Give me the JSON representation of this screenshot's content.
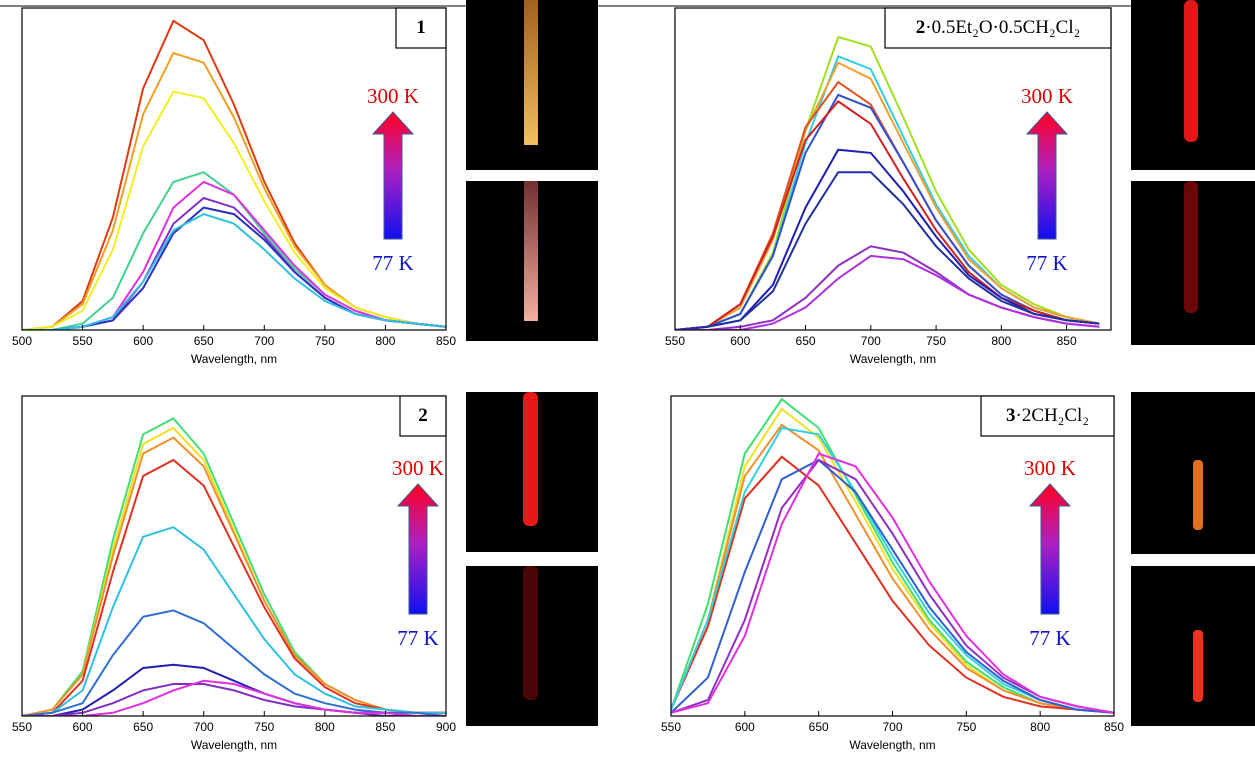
{
  "chart_data": [
    {
      "type": "line",
      "xlabel": "Wavelength, nm",
      "label": {
        "number": "1"
      },
      "hot": "300 K",
      "cold": "77 K",
      "xlim": [
        500,
        850
      ],
      "ylim": [
        0,
        1
      ],
      "xticks": [
        500,
        550,
        600,
        650,
        700,
        750,
        800,
        850
      ],
      "x": [
        500,
        525,
        550,
        575,
        600,
        625,
        650,
        675,
        700,
        725,
        750,
        775,
        800,
        825,
        850
      ],
      "series": [
        {
          "color": "#e03a10",
          "values": [
            0,
            0.01,
            0.09,
            0.35,
            0.75,
            0.96,
            0.9,
            0.7,
            0.46,
            0.27,
            0.14,
            0.07,
            0.04,
            0.02,
            0.01
          ]
        },
        {
          "color": "#f0a020",
          "values": [
            0,
            0.01,
            0.08,
            0.31,
            0.67,
            0.86,
            0.83,
            0.66,
            0.44,
            0.26,
            0.14,
            0.07,
            0.04,
            0.02,
            0.01
          ]
        },
        {
          "color": "#f0f020",
          "values": [
            0,
            0.01,
            0.06,
            0.25,
            0.57,
            0.74,
            0.72,
            0.58,
            0.4,
            0.24,
            0.13,
            0.07,
            0.04,
            0.02,
            0.01
          ]
        },
        {
          "color": "#40d090",
          "values": [
            0,
            0,
            0.02,
            0.1,
            0.3,
            0.46,
            0.49,
            0.42,
            0.3,
            0.19,
            0.11,
            0.06,
            0.03,
            0.02,
            0.01
          ]
        },
        {
          "color": "#e030e0",
          "values": [
            0,
            0,
            0.01,
            0.04,
            0.18,
            0.38,
            0.46,
            0.42,
            0.31,
            0.2,
            0.11,
            0.06,
            0.03,
            0.02,
            0.01
          ]
        },
        {
          "color": "#8030d0",
          "values": [
            0,
            0,
            0.01,
            0.03,
            0.15,
            0.33,
            0.41,
            0.38,
            0.29,
            0.18,
            0.1,
            0.05,
            0.03,
            0.02,
            0.01
          ]
        },
        {
          "color": "#3030c0",
          "values": [
            0,
            0,
            0.01,
            0.03,
            0.13,
            0.3,
            0.38,
            0.36,
            0.28,
            0.18,
            0.1,
            0.05,
            0.03,
            0.02,
            0.01
          ]
        },
        {
          "color": "#30c0e0",
          "values": [
            0,
            0,
            0.01,
            0.04,
            0.15,
            0.31,
            0.36,
            0.33,
            0.25,
            0.16,
            0.09,
            0.05,
            0.03,
            0.02,
            0.01
          ]
        }
      ]
    },
    {
      "type": "line",
      "xlabel": "Wavelength, nm",
      "label": {
        "number": "2",
        "formula": "·0.5Et₂O·0.5CH₂Cl₂"
      },
      "hot": "300 K",
      "cold": "77 K",
      "xlim": [
        550,
        884
      ],
      "ylim": [
        0,
        1
      ],
      "xticks": [
        550,
        600,
        650,
        700,
        750,
        800,
        850
      ],
      "x": [
        550,
        575,
        600,
        625,
        650,
        675,
        700,
        725,
        750,
        775,
        800,
        825,
        850,
        875
      ],
      "series": [
        {
          "color": "#a0e020",
          "values": [
            0,
            0.01,
            0.05,
            0.24,
            0.62,
            0.91,
            0.88,
            0.66,
            0.43,
            0.25,
            0.14,
            0.08,
            0.04,
            0.02
          ]
        },
        {
          "color": "#30d0e0",
          "values": [
            0,
            0.01,
            0.05,
            0.23,
            0.58,
            0.85,
            0.81,
            0.6,
            0.39,
            0.23,
            0.13,
            0.07,
            0.04,
            0.02
          ]
        },
        {
          "color": "#f0a030",
          "values": [
            0,
            0.01,
            0.07,
            0.28,
            0.62,
            0.83,
            0.78,
            0.58,
            0.38,
            0.22,
            0.13,
            0.07,
            0.04,
            0.02
          ]
        },
        {
          "color": "#e05020",
          "values": [
            0,
            0.01,
            0.08,
            0.3,
            0.63,
            0.77,
            0.7,
            0.52,
            0.34,
            0.2,
            0.11,
            0.06,
            0.03,
            0.02
          ]
        },
        {
          "color": "#3050d0",
          "values": [
            0,
            0.01,
            0.05,
            0.23,
            0.55,
            0.73,
            0.69,
            0.52,
            0.34,
            0.2,
            0.11,
            0.06,
            0.03,
            0.02
          ]
        },
        {
          "color": "#d02020",
          "values": [
            0,
            0.01,
            0.08,
            0.29,
            0.59,
            0.71,
            0.64,
            0.47,
            0.31,
            0.18,
            0.1,
            0.06,
            0.03,
            0.02
          ]
        },
        {
          "color": "#2020b0",
          "values": [
            0,
            0.01,
            0.03,
            0.14,
            0.38,
            0.56,
            0.55,
            0.43,
            0.29,
            0.17,
            0.1,
            0.05,
            0.03,
            0.02
          ]
        },
        {
          "color": "#2030a0",
          "values": [
            0,
            0.01,
            0.03,
            0.12,
            0.33,
            0.49,
            0.49,
            0.39,
            0.26,
            0.16,
            0.09,
            0.05,
            0.03,
            0.02
          ]
        },
        {
          "color": "#9030c0",
          "values": [
            0,
            0,
            0.01,
            0.03,
            0.1,
            0.2,
            0.26,
            0.24,
            0.18,
            0.11,
            0.07,
            0.04,
            0.02,
            0.01
          ]
        },
        {
          "color": "#b030e0",
          "values": [
            0,
            0,
            0,
            0.02,
            0.07,
            0.16,
            0.23,
            0.22,
            0.17,
            0.11,
            0.07,
            0.04,
            0.02,
            0.01
          ]
        }
      ]
    },
    {
      "type": "line",
      "xlabel": "Wavelength, nm",
      "label": {
        "number": "2"
      },
      "hot": "300 K",
      "cold": "77 K",
      "xlim": [
        550,
        900
      ],
      "ylim": [
        0,
        1
      ],
      "xticks": [
        550,
        600,
        650,
        700,
        750,
        800,
        850,
        900
      ],
      "x": [
        550,
        575,
        600,
        625,
        650,
        675,
        700,
        725,
        750,
        775,
        800,
        825,
        850,
        875,
        900
      ],
      "series": [
        {
          "color": "#40e070",
          "values": [
            0,
            0.02,
            0.14,
            0.55,
            0.88,
            0.93,
            0.82,
            0.6,
            0.38,
            0.2,
            0.1,
            0.05,
            0.02,
            0.01,
            0.01
          ]
        },
        {
          "color": "#f0e020",
          "values": [
            0,
            0.02,
            0.13,
            0.52,
            0.85,
            0.9,
            0.8,
            0.58,
            0.36,
            0.19,
            0.1,
            0.05,
            0.02,
            0.01,
            0.01
          ]
        },
        {
          "color": "#f09030",
          "values": [
            0,
            0.02,
            0.13,
            0.5,
            0.82,
            0.87,
            0.78,
            0.57,
            0.36,
            0.19,
            0.1,
            0.05,
            0.02,
            0.01,
            0.01
          ]
        },
        {
          "color": "#e03020",
          "values": [
            0,
            0.01,
            0.11,
            0.45,
            0.75,
            0.8,
            0.72,
            0.53,
            0.34,
            0.18,
            0.09,
            0.04,
            0.02,
            0.01,
            0.01
          ]
        },
        {
          "color": "#30c0e0",
          "values": [
            0,
            0.01,
            0.08,
            0.34,
            0.56,
            0.59,
            0.52,
            0.38,
            0.24,
            0.13,
            0.07,
            0.03,
            0.02,
            0.01,
            0.01
          ]
        },
        {
          "color": "#3070d0",
          "values": [
            0,
            0.01,
            0.04,
            0.19,
            0.31,
            0.33,
            0.29,
            0.21,
            0.13,
            0.07,
            0.04,
            0.02,
            0.01,
            0.01,
            0
          ]
        },
        {
          "color": "#2020b0",
          "values": [
            0,
            0,
            0.02,
            0.08,
            0.15,
            0.16,
            0.15,
            0.11,
            0.07,
            0.04,
            0.02,
            0.01,
            0.01,
            0,
            0
          ]
        },
        {
          "color": "#8030c0",
          "values": [
            0,
            0,
            0.01,
            0.04,
            0.08,
            0.1,
            0.1,
            0.08,
            0.05,
            0.03,
            0.02,
            0.01,
            0,
            0,
            0
          ]
        },
        {
          "color": "#e030e0",
          "values": [
            0,
            0,
            0,
            0.01,
            0.04,
            0.08,
            0.11,
            0.1,
            0.07,
            0.04,
            0.02,
            0.01,
            0.01,
            0,
            0
          ]
        }
      ]
    },
    {
      "type": "line",
      "xlabel": "Wavelength, nm",
      "label": {
        "number": "3",
        "formula": "·2CH₂Cl₂"
      },
      "hot": "300 K",
      "cold": "77 K",
      "xlim": [
        550,
        850
      ],
      "ylim": [
        0,
        1
      ],
      "xticks": [
        550,
        600,
        650,
        700,
        750,
        800,
        850
      ],
      "x": [
        550,
        575,
        600,
        625,
        650,
        675,
        700,
        725,
        750,
        775,
        800,
        825,
        850
      ],
      "series": [
        {
          "color": "#40e070",
          "values": [
            0.02,
            0.35,
            0.82,
            0.99,
            0.9,
            0.69,
            0.48,
            0.3,
            0.17,
            0.09,
            0.04,
            0.02,
            0.01
          ]
        },
        {
          "color": "#f0e020",
          "values": [
            0.02,
            0.3,
            0.78,
            0.96,
            0.87,
            0.67,
            0.46,
            0.29,
            0.16,
            0.08,
            0.04,
            0.02,
            0.01
          ]
        },
        {
          "color": "#f09030",
          "values": [
            0.02,
            0.3,
            0.75,
            0.91,
            0.83,
            0.63,
            0.43,
            0.27,
            0.15,
            0.08,
            0.04,
            0.02,
            0.01
          ]
        },
        {
          "color": "#e03020",
          "values": [
            0.02,
            0.28,
            0.68,
            0.81,
            0.72,
            0.54,
            0.36,
            0.22,
            0.12,
            0.06,
            0.03,
            0.02,
            0.01
          ]
        },
        {
          "color": "#30d0e0",
          "values": [
            0.02,
            0.3,
            0.7,
            0.9,
            0.88,
            0.7,
            0.5,
            0.32,
            0.19,
            0.1,
            0.05,
            0.02,
            0.01
          ]
        },
        {
          "color": "#3060d0",
          "values": [
            0.01,
            0.12,
            0.45,
            0.74,
            0.8,
            0.7,
            0.52,
            0.34,
            0.2,
            0.11,
            0.05,
            0.02,
            0.01
          ]
        },
        {
          "color": "#9030c0",
          "values": [
            0.01,
            0.05,
            0.3,
            0.65,
            0.8,
            0.74,
            0.57,
            0.38,
            0.22,
            0.12,
            0.06,
            0.03,
            0.01
          ]
        },
        {
          "color": "#e030e0",
          "values": [
            0.01,
            0.04,
            0.25,
            0.6,
            0.82,
            0.78,
            0.62,
            0.42,
            0.25,
            0.13,
            0.06,
            0.03,
            0.01
          ]
        }
      ]
    }
  ]
}
